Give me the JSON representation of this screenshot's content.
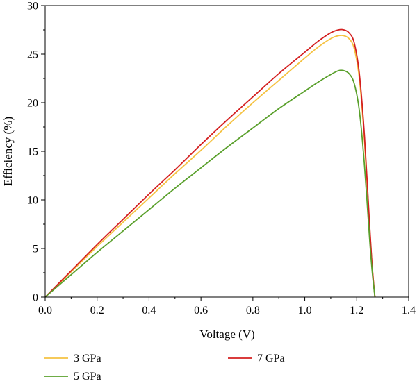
{
  "chart_data": {
    "type": "line",
    "title": "",
    "xlabel": "Voltage (V)",
    "ylabel": "Efficiency (%)",
    "xlim": [
      0.0,
      1.4
    ],
    "ylim": [
      0,
      30
    ],
    "xticks": [
      "0.0",
      "0.2",
      "0.4",
      "0.6",
      "0.8",
      "1.0",
      "1.2",
      "1.4"
    ],
    "yticks": [
      "0",
      "5",
      "10",
      "15",
      "20",
      "25",
      "30"
    ],
    "grid": false,
    "legend_position": "bottom",
    "series": [
      {
        "name": "3 GPa",
        "color": "#f5c242",
        "x": [
          0.0,
          0.1,
          0.2,
          0.3,
          0.4,
          0.5,
          0.6,
          0.7,
          0.8,
          0.9,
          1.0,
          1.05,
          1.1,
          1.13,
          1.15,
          1.17,
          1.19,
          1.21,
          1.23,
          1.25,
          1.26,
          1.27
        ],
        "y": [
          0.0,
          2.6,
          5.2,
          7.7,
          10.2,
          12.7,
          15.1,
          17.6,
          20.0,
          22.3,
          24.6,
          25.7,
          26.6,
          26.9,
          26.9,
          26.6,
          25.6,
          22.5,
          16.0,
          7.0,
          3.0,
          0.0
        ]
      },
      {
        "name": "7 GPa",
        "color": "#d42020",
        "x": [
          0.0,
          0.1,
          0.2,
          0.3,
          0.4,
          0.5,
          0.6,
          0.7,
          0.8,
          0.9,
          1.0,
          1.05,
          1.1,
          1.13,
          1.15,
          1.17,
          1.19,
          1.21,
          1.23,
          1.25,
          1.26,
          1.27
        ],
        "y": [
          0.0,
          2.7,
          5.4,
          8.0,
          10.6,
          13.1,
          15.7,
          18.2,
          20.6,
          23.0,
          25.2,
          26.3,
          27.2,
          27.5,
          27.5,
          27.2,
          26.2,
          23.0,
          16.5,
          7.2,
          3.0,
          0.0
        ]
      },
      {
        "name": "5 GPa",
        "color": "#5aa02c",
        "x": [
          0.0,
          0.1,
          0.2,
          0.3,
          0.4,
          0.5,
          0.6,
          0.7,
          0.8,
          0.9,
          1.0,
          1.05,
          1.1,
          1.13,
          1.15,
          1.17,
          1.19,
          1.21,
          1.23,
          1.25,
          1.26,
          1.27
        ],
        "y": [
          0.0,
          2.3,
          4.6,
          6.8,
          9.0,
          11.2,
          13.3,
          15.4,
          17.4,
          19.4,
          21.2,
          22.1,
          22.9,
          23.3,
          23.3,
          23.0,
          22.0,
          19.2,
          13.5,
          5.8,
          2.5,
          0.0
        ]
      }
    ],
    "legend": [
      {
        "label": "3 GPa",
        "color": "#f5c242"
      },
      {
        "label": "7 GPa",
        "color": "#d42020"
      },
      {
        "label": "5 GPa",
        "color": "#5aa02c"
      }
    ]
  }
}
